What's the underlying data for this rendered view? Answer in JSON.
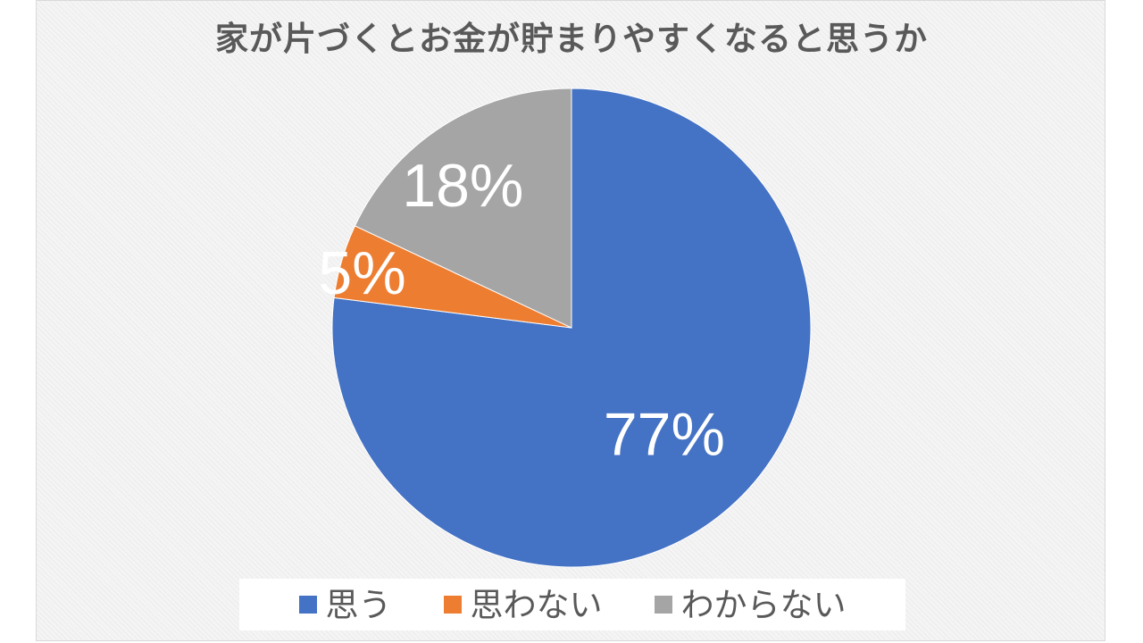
{
  "chart_data": {
    "type": "pie",
    "title": "家が片づくとお金が貯まりやすくなると思うか",
    "categories": [
      "思う",
      "思わない",
      "わからない"
    ],
    "values": [
      77,
      5,
      18
    ],
    "data_labels": [
      "77%",
      "5%",
      "18%"
    ],
    "colors": [
      "#4472C4",
      "#ED7D31",
      "#A5A5A5"
    ],
    "start_angle_deg": 0,
    "direction": "clockwise",
    "legend": "bottom"
  }
}
